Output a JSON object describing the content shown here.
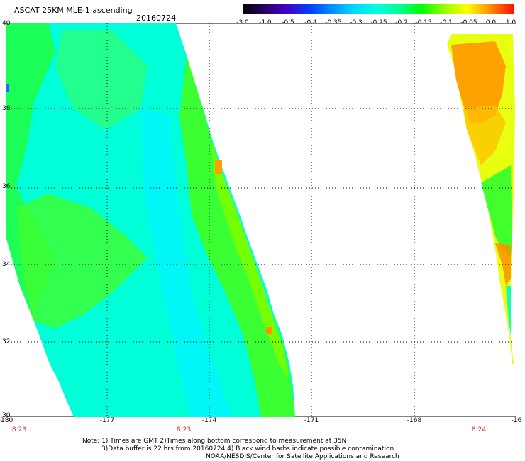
{
  "header": {
    "title": "ASCAT 25KM MLE-1 ascending",
    "date": "20160724"
  },
  "colorbar": {
    "labels": [
      "-3.0",
      "-1.0",
      "-0.5",
      "-0.4",
      "-0.35",
      "-0.3",
      "-0.25",
      "-0.2",
      "-0.15",
      "-0.1",
      "-0.05",
      "0.0",
      "1.0"
    ]
  },
  "map": {
    "x_ticks": [
      "-180",
      "-177",
      "-174",
      "-171",
      "-168",
      "-16"
    ],
    "y_ticks": [
      "40",
      "38",
      "36",
      "34",
      "32",
      "30"
    ],
    "time_labels": [
      "8:23",
      "8:23",
      "8:24"
    ],
    "colors": {
      "cyan": "#00ffe8",
      "lightcyan": "#00f0ff",
      "seagreen": "#00ffa0",
      "green": "#20ff40",
      "lime": "#60ff00",
      "yellow": "#ffff00",
      "orange": "#ff9000",
      "blue": "#3060ff"
    }
  },
  "notes": {
    "line1": "Note: 1) Times are GMT 2)Times along bottom correspond to measurement at 35N",
    "line2": "3)Data buffer is 22 hrs from 20160724 4) Black wind barbs indicate possible contamination",
    "line3": "NOAA/NESDIS/Center for Satellite Applications and Research"
  }
}
